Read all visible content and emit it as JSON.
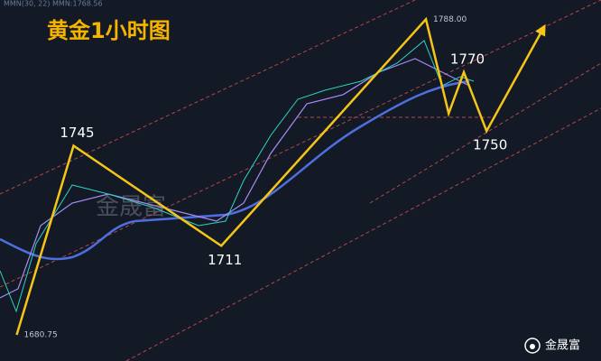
{
  "chart_data": {
    "type": "line",
    "title": "黄金1小时图",
    "indicator": "MMN(30, 22) MMN:1768.56",
    "watermark": "金晟富",
    "brand": "金晟富",
    "series": [
      {
        "name": null,
        "color": "#f5c518",
        "x": [
          2,
          17,
          56,
          110,
          116,
          120,
          126,
          141
        ],
        "values": [
          1680.75,
          1745,
          1711,
          1788,
          1756,
          1770,
          1750,
          1785
        ],
        "value_labels": [
          "1680.75",
          "1745",
          "1711",
          "1788.00",
          null,
          "1770",
          "1750",
          null
        ]
      }
    ],
    "xlim": [
      -2.4,
      156.2
    ],
    "ylim": [
      1678,
      1793
    ]
  }
}
